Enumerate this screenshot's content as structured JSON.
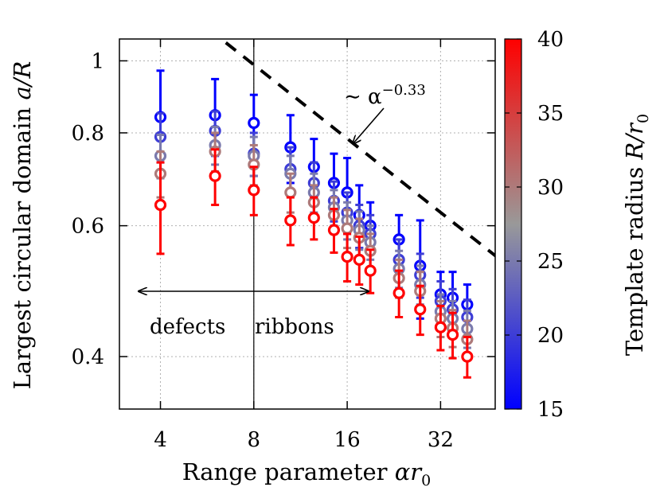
{
  "chart_data": {
    "type": "scatter",
    "xlabel_text": "Range parameter ",
    "xlabel_symbol": "αr",
    "xlabel_sub": "0",
    "ylabel_text": "Largest circular domain ",
    "ylabel_symbol": "a/R",
    "colorbar_label_text": "Template radius ",
    "colorbar_label_symbol": "R/r",
    "colorbar_label_sub": "0",
    "x_scale": "log",
    "y_scale": "log",
    "xlim": [
      2.95,
      48
    ],
    "ylim": [
      0.34,
      1.07
    ],
    "x_ticks": [
      4,
      8,
      16,
      32
    ],
    "x_tick_labels": [
      "4",
      "8",
      "16",
      "32"
    ],
    "y_ticks": [
      0.4,
      0.6,
      0.8,
      1
    ],
    "y_tick_labels": [
      "0.4",
      "0.6",
      "0.8",
      "1"
    ],
    "grid": true,
    "colorbar": {
      "range": [
        15,
        40
      ],
      "ticks": [
        15,
        20,
        25,
        30,
        35,
        40
      ],
      "tick_labels": [
        "15",
        "20",
        "25",
        "30",
        "35",
        "40"
      ],
      "low_color": "#0000ff",
      "mid_color": "#999999",
      "high_color": "#ff0000"
    },
    "vertical_line_x": 8,
    "power_law": {
      "exponent": -0.33,
      "coefficient": 1.962,
      "label_prefix": "∼ α",
      "label_exponent": "−0.33"
    },
    "region_labels": {
      "left": "defects",
      "right": "ribbons"
    },
    "series": [
      {
        "color_value": 15,
        "points": [
          {
            "x": 4,
            "y": 0.84,
            "err": 0.13
          },
          {
            "x": 6,
            "y": 0.845,
            "err": 0.1
          },
          {
            "x": 8,
            "y": 0.825,
            "err": 0.075
          },
          {
            "x": 10.5,
            "y": 0.765,
            "err": 0.08
          },
          {
            "x": 12.5,
            "y": 0.72,
            "err": 0.065
          },
          {
            "x": 14.5,
            "y": 0.685,
            "err": 0.065
          },
          {
            "x": 16,
            "y": 0.665,
            "err": 0.075
          },
          {
            "x": 17.5,
            "y": 0.62,
            "err": 0.06
          },
          {
            "x": 19,
            "y": 0.6,
            "err": 0.045
          },
          {
            "x": 23.5,
            "y": 0.575,
            "err": 0.045
          },
          {
            "x": 27.5,
            "y": 0.53,
            "err": 0.08
          },
          {
            "x": 32,
            "y": 0.485,
            "err": 0.035
          },
          {
            "x": 35,
            "y": 0.48,
            "err": 0.04
          },
          {
            "x": 39,
            "y": 0.47,
            "err": 0.03
          }
        ]
      },
      {
        "color_value": 20,
        "points": [
          {
            "x": 4,
            "y": 0.79,
            "err": 0.06
          },
          {
            "x": 6,
            "y": 0.805,
            "err": 0.05
          },
          {
            "x": 8,
            "y": 0.75,
            "err": 0.05
          },
          {
            "x": 10.5,
            "y": 0.715,
            "err": 0.05
          },
          {
            "x": 12.5,
            "y": 0.685,
            "err": 0.045
          },
          {
            "x": 14.5,
            "y": 0.648,
            "err": 0.04
          },
          {
            "x": 16,
            "y": 0.625,
            "err": 0.04
          },
          {
            "x": 17.5,
            "y": 0.6,
            "err": 0.04
          },
          {
            "x": 19,
            "y": 0.585,
            "err": 0.035
          },
          {
            "x": 23.5,
            "y": 0.54,
            "err": 0.035
          },
          {
            "x": 27.5,
            "y": 0.515,
            "err": 0.035
          },
          {
            "x": 32,
            "y": 0.475,
            "err": 0.03
          },
          {
            "x": 35,
            "y": 0.463,
            "err": 0.03
          },
          {
            "x": 39,
            "y": 0.452,
            "err": 0.025
          }
        ]
      },
      {
        "color_value": 25,
        "points": [
          {
            "x": 4,
            "y": 0.745,
            "err": 0.05
          },
          {
            "x": 6,
            "y": 0.77,
            "err": 0.045
          },
          {
            "x": 8,
            "y": 0.745,
            "err": 0.045
          },
          {
            "x": 10.5,
            "y": 0.705,
            "err": 0.04
          },
          {
            "x": 12.5,
            "y": 0.665,
            "err": 0.04
          },
          {
            "x": 14.5,
            "y": 0.635,
            "err": 0.035
          },
          {
            "x": 16,
            "y": 0.61,
            "err": 0.035
          },
          {
            "x": 17.5,
            "y": 0.592,
            "err": 0.035
          },
          {
            "x": 19,
            "y": 0.57,
            "err": 0.03
          },
          {
            "x": 23.5,
            "y": 0.525,
            "err": 0.03
          },
          {
            "x": 27.5,
            "y": 0.5,
            "err": 0.03
          },
          {
            "x": 32,
            "y": 0.46,
            "err": 0.025
          },
          {
            "x": 35,
            "y": 0.45,
            "err": 0.025
          },
          {
            "x": 39,
            "y": 0.436,
            "err": 0.025
          }
        ]
      },
      {
        "color_value": 30,
        "points": [
          {
            "x": 4,
            "y": 0.705,
            "err": 0.05
          },
          {
            "x": 6,
            "y": 0.755,
            "err": 0.045
          },
          {
            "x": 8,
            "y": 0.725,
            "err": 0.045
          },
          {
            "x": 10.5,
            "y": 0.665,
            "err": 0.04
          },
          {
            "x": 12.5,
            "y": 0.645,
            "err": 0.035
          },
          {
            "x": 14.5,
            "y": 0.62,
            "err": 0.035
          },
          {
            "x": 16,
            "y": 0.595,
            "err": 0.035
          },
          {
            "x": 17.5,
            "y": 0.578,
            "err": 0.035
          },
          {
            "x": 19,
            "y": 0.555,
            "err": 0.03
          },
          {
            "x": 23.5,
            "y": 0.51,
            "err": 0.03
          },
          {
            "x": 27.5,
            "y": 0.49,
            "err": 0.03
          },
          {
            "x": 32,
            "y": 0.45,
            "err": 0.025
          },
          {
            "x": 35,
            "y": 0.437,
            "err": 0.025
          },
          {
            "x": 39,
            "y": 0.422,
            "err": 0.025
          }
        ]
      },
      {
        "color_value": 40,
        "points": [
          {
            "x": 4,
            "y": 0.64,
            "err": 0.09
          },
          {
            "x": 6,
            "y": 0.7,
            "err": 0.06
          },
          {
            "x": 8,
            "y": 0.67,
            "err": 0.05
          },
          {
            "x": 10.5,
            "y": 0.61,
            "err": 0.045
          },
          {
            "x": 12.5,
            "y": 0.615,
            "err": 0.04
          },
          {
            "x": 14.5,
            "y": 0.592,
            "err": 0.04
          },
          {
            "x": 16,
            "y": 0.545,
            "err": 0.04
          },
          {
            "x": 17.5,
            "y": 0.54,
            "err": 0.04
          },
          {
            "x": 19,
            "y": 0.522,
            "err": 0.035
          },
          {
            "x": 23.5,
            "y": 0.487,
            "err": 0.035
          },
          {
            "x": 27.5,
            "y": 0.463,
            "err": 0.035
          },
          {
            "x": 32,
            "y": 0.438,
            "err": 0.03
          },
          {
            "x": 35,
            "y": 0.428,
            "err": 0.03
          },
          {
            "x": 39,
            "y": 0.4,
            "err": 0.025
          }
        ]
      }
    ]
  }
}
